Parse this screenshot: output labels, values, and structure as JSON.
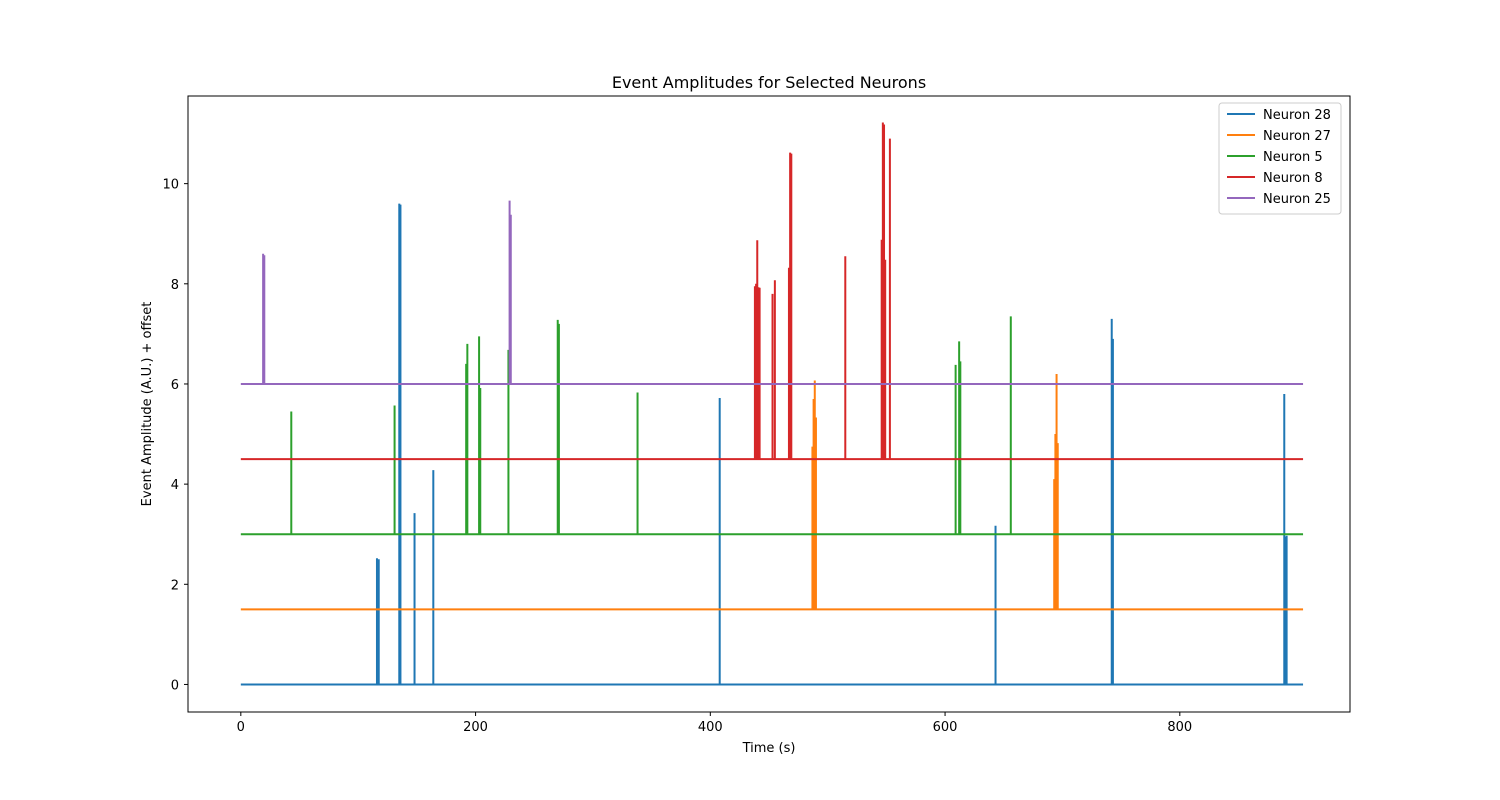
{
  "chart_data": {
    "type": "line",
    "title": "Event Amplitudes for Selected Neurons",
    "xlabel": "Time (s)",
    "ylabel": "Event Amplitude (A.U.) + offset",
    "xlim": [
      -45,
      945
    ],
    "ylim": [
      -0.55,
      11.75
    ],
    "xticks": [
      0,
      200,
      400,
      600,
      800
    ],
    "yticks": [
      0,
      2,
      4,
      6,
      8,
      10
    ],
    "grid": false,
    "legend_position": "top-right",
    "x_end": 905,
    "series": [
      {
        "name": "Neuron 28",
        "color": "#1f77b4",
        "offset": 0,
        "events": [
          [
            116,
            2.52
          ],
          [
            117.5,
            2.5
          ],
          [
            135,
            9.6
          ],
          [
            136,
            9.58
          ],
          [
            148,
            3.42
          ],
          [
            164,
            4.28
          ],
          [
            408,
            5.72
          ],
          [
            643,
            3.17
          ],
          [
            742,
            7.3
          ],
          [
            743,
            6.9
          ],
          [
            889,
            5.8
          ],
          [
            890,
            2.95
          ],
          [
            891,
            2.97
          ]
        ]
      },
      {
        "name": "Neuron 27",
        "color": "#ff7f0e",
        "offset": 1.5,
        "events": [
          [
            487,
            4.75
          ],
          [
            488,
            5.7
          ],
          [
            489,
            6.07
          ],
          [
            490,
            5.33
          ],
          [
            693,
            4.1
          ],
          [
            694,
            5.0
          ],
          [
            695,
            6.2
          ],
          [
            696,
            4.82
          ]
        ]
      },
      {
        "name": "Neuron 5",
        "color": "#2ca02c",
        "offset": 3,
        "events": [
          [
            43,
            5.45
          ],
          [
            131,
            5.57
          ],
          [
            192,
            6.4
          ],
          [
            193,
            6.8
          ],
          [
            203,
            6.95
          ],
          [
            204,
            5.92
          ],
          [
            228,
            6.68
          ],
          [
            270,
            7.28
          ],
          [
            271,
            7.2
          ],
          [
            338,
            5.83
          ],
          [
            609,
            6.38
          ],
          [
            612,
            6.85
          ],
          [
            613,
            6.45
          ],
          [
            656,
            7.35
          ]
        ]
      },
      {
        "name": "Neuron 8",
        "color": "#d62728",
        "offset": 4.5,
        "events": [
          [
            438,
            7.95
          ],
          [
            439,
            8.0
          ],
          [
            440,
            8.87
          ],
          [
            441,
            7.93
          ],
          [
            442,
            7.92
          ],
          [
            453,
            7.8
          ],
          [
            455,
            8.07
          ],
          [
            467,
            8.32
          ],
          [
            468,
            10.62
          ],
          [
            469,
            10.6
          ],
          [
            515,
            8.55
          ],
          [
            546,
            8.88
          ],
          [
            547,
            11.22
          ],
          [
            548,
            11.18
          ],
          [
            549,
            8.48
          ],
          [
            553,
            10.9
          ]
        ]
      },
      {
        "name": "Neuron 25",
        "color": "#9467bd",
        "offset": 6,
        "events": [
          [
            19,
            8.6
          ],
          [
            20,
            8.57
          ],
          [
            229,
            9.66
          ],
          [
            230,
            9.38
          ]
        ]
      }
    ]
  }
}
